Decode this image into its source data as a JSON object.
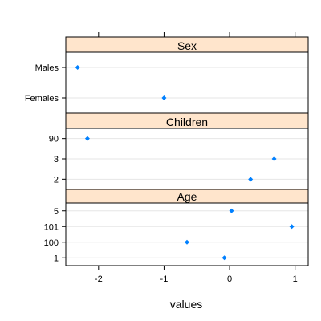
{
  "chart_data": {
    "type": "scatter",
    "xlabel": "values",
    "xlim": [
      -2.5,
      1.2
    ],
    "x_ticks": [
      -2,
      -1,
      0,
      1
    ],
    "grid": true,
    "point_color": "#0080ff",
    "strip_color": "#ffe5cc",
    "panels": [
      {
        "name": "Age",
        "levels": [
          "1",
          "100",
          "101",
          "5"
        ],
        "points": [
          {
            "label": "1",
            "value": -0.08
          },
          {
            "label": "100",
            "value": -0.65
          },
          {
            "label": "101",
            "value": 0.95
          },
          {
            "label": "5",
            "value": 0.03
          }
        ]
      },
      {
        "name": "Children",
        "levels": [
          "2",
          "3",
          "90"
        ],
        "points": [
          {
            "label": "2",
            "value": 0.32
          },
          {
            "label": "3",
            "value": 0.68
          },
          {
            "label": "90",
            "value": -2.17
          }
        ]
      },
      {
        "name": "Sex",
        "levels": [
          "Females",
          "Males"
        ],
        "points": [
          {
            "label": "Females",
            "value": -1.0
          },
          {
            "label": "Males",
            "value": -2.32
          }
        ]
      }
    ]
  }
}
